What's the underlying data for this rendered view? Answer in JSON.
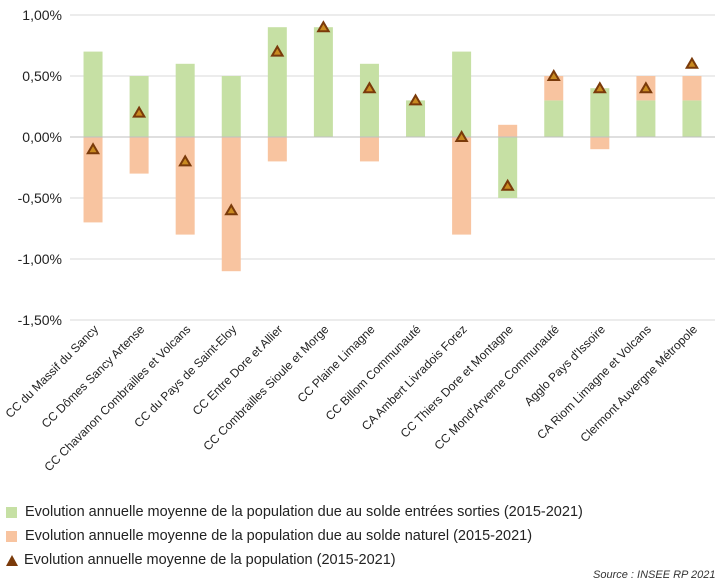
{
  "chart_data": {
    "type": "bar",
    "stacked": true,
    "categories": [
      "CC du Massif du Sancy",
      "CC Dômes Sancy Artense",
      "CC Chavanon Combrailles et Volcans",
      "CC du Pays de Saint-Eloy",
      "CC Entre Dore et Allier",
      "CC Combrailles Sioule et Morge",
      "CC Plaine Limagne",
      "CC Billom Communauté",
      "CA Ambert Livradois Forez",
      "CC Thiers Dore et Montagne",
      "CC Mond'Arverne Communauté",
      "Agglo Pays d'Issoire",
      "CA Riom Limagne et Volcans",
      "Clermont Auvergne Métropole"
    ],
    "series": [
      {
        "name": "Evolution annuelle moyenne de la population due au solde entrées sorties (2015-2021)",
        "kind": "bar",
        "color": "#c6e0a4",
        "values": [
          0.7,
          0.5,
          0.6,
          0.5,
          0.9,
          0.9,
          0.6,
          0.3,
          0.7,
          -0.5,
          0.3,
          0.4,
          0.3,
          0.3
        ]
      },
      {
        "name": "Evolution annuelle moyenne de la population due au solde naturel (2015-2021)",
        "kind": "bar",
        "color": "#f8c4a0",
        "values": [
          -0.7,
          -0.3,
          -0.8,
          -1.1,
          -0.2,
          0.0,
          -0.2,
          0.0,
          -0.8,
          0.1,
          0.2,
          -0.1,
          0.2,
          0.2
        ]
      },
      {
        "name": "Evolution annuelle moyenne de la population (2015-2021)",
        "kind": "marker",
        "color": "#7a3a0a",
        "values": [
          -0.1,
          0.2,
          -0.2,
          -0.6,
          0.7,
          0.9,
          0.4,
          0.3,
          0.0,
          -0.4,
          0.5,
          0.4,
          0.4,
          0.6
        ]
      }
    ],
    "y_ticks": [
      "1,00%",
      "0,50%",
      "0,00%",
      "-0,50%",
      "-1,00%",
      "-1,50%"
    ],
    "ylim": [
      -1.5,
      1.0
    ],
    "grid": true,
    "legend_position": "bottom",
    "source": "Source : INSEE RP 2021"
  }
}
